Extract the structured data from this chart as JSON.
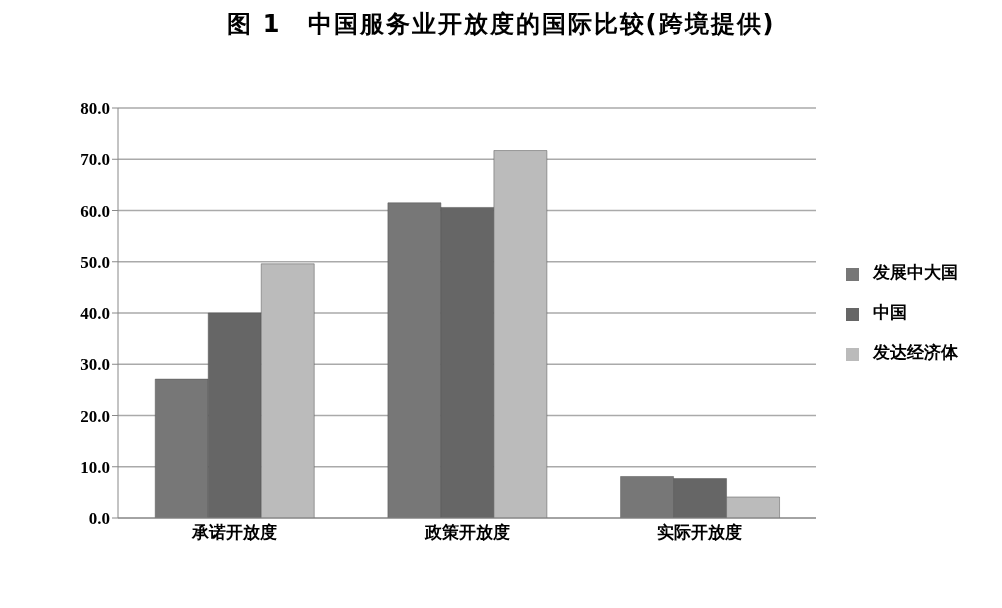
{
  "chart_data": {
    "type": "bar",
    "title": "图 1　中国服务业开放度的国际比较(跨境提供)",
    "categories": [
      "承诺开放度",
      "政策开放度",
      "实际开放度"
    ],
    "series": [
      {
        "name": "发展中大国",
        "color": "#777777",
        "values": [
          27.1,
          61.5,
          8.1
        ]
      },
      {
        "name": "中国",
        "color": "#666666",
        "values": [
          40.0,
          60.6,
          7.7
        ]
      },
      {
        "name": "发达经济体",
        "color": "#bbbbbb",
        "values": [
          49.6,
          71.7,
          4.1
        ]
      }
    ],
    "ylim": [
      0,
      80
    ],
    "yticks": [
      {
        "value": 0,
        "label": "0.0"
      },
      {
        "value": 10,
        "label": "10.0"
      },
      {
        "value": 20,
        "label": "20.0"
      },
      {
        "value": 30,
        "label": "30.0"
      },
      {
        "value": 40,
        "label": "40.0"
      },
      {
        "value": 50,
        "label": "50.0"
      },
      {
        "value": 60,
        "label": "60.0"
      },
      {
        "value": 70,
        "label": "70.0"
      },
      {
        "value": 80,
        "label": "80.0"
      }
    ],
    "grid": "y",
    "legend": "right"
  }
}
